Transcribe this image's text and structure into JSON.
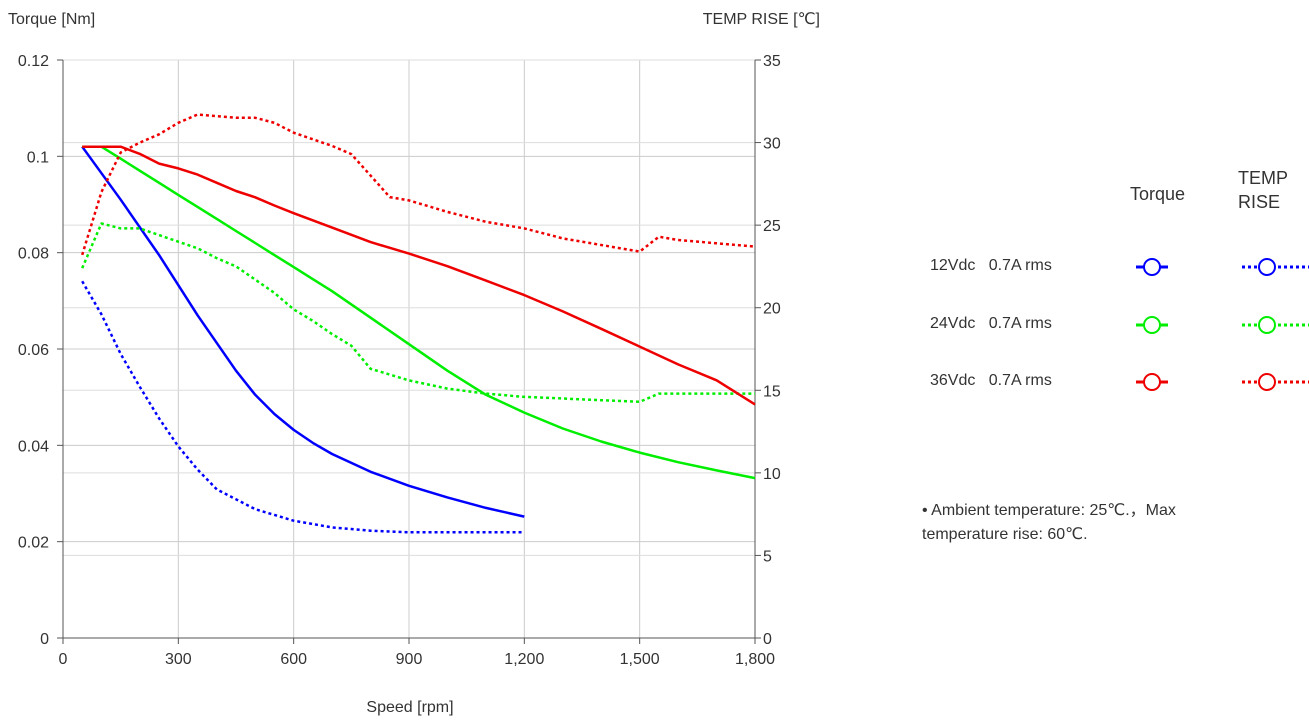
{
  "chart_data": {
    "type": "line",
    "xlabel": "Speed [rpm]",
    "ylabel_left": "Torque  [Nm]",
    "ylabel_right": "TEMP RISE [℃]",
    "xlim": [
      0,
      1800
    ],
    "ylim_left": [
      0,
      0.12
    ],
    "ylim_right": [
      0,
      35
    ],
    "x_ticks": [
      "0",
      "300",
      "600",
      "900",
      "1,200",
      "1,500",
      "1,800"
    ],
    "y_left_ticks": [
      "0",
      "0.02",
      "0.04",
      "0.06",
      "0.08",
      "0.1",
      "0.12"
    ],
    "y_right_ticks": [
      "0",
      "5",
      "10",
      "15",
      "20",
      "25",
      "30",
      "35"
    ],
    "grid": true,
    "legend_placement": "right",
    "series": [
      {
        "name": "12Vdc  0.7A rms",
        "kind": "Torque",
        "axis": "left",
        "color": "#0000ff",
        "dash": false,
        "x": [
          50,
          150,
          250,
          350,
          450,
          500,
          550,
          600,
          650,
          700,
          800,
          900,
          1000,
          1100,
          1200
        ],
        "y": [
          0.102,
          0.091,
          0.0795,
          0.067,
          0.0555,
          0.0505,
          0.0465,
          0.0432,
          0.0405,
          0.0382,
          0.0345,
          0.0316,
          0.0292,
          0.027,
          0.0252
        ]
      },
      {
        "name": "12Vdc  0.7A rms",
        "kind": "TEMP RISE",
        "axis": "right",
        "color": "#0000ff",
        "dash": true,
        "x": [
          50,
          100,
          150,
          200,
          250,
          300,
          350,
          400,
          450,
          500,
          600,
          700,
          750,
          800,
          900,
          1000,
          1100,
          1200
        ],
        "y": [
          21.6,
          19.6,
          17.2,
          15.2,
          13.3,
          11.6,
          10.2,
          9.0,
          8.4,
          7.8,
          7.1,
          6.7,
          6.6,
          6.5,
          6.4,
          6.4,
          6.4,
          6.4
        ]
      },
      {
        "name": "24Vdc  0.7A rms",
        "kind": "Torque",
        "axis": "left",
        "color": "#00ee00",
        "dash": false,
        "x": [
          50,
          100,
          150,
          200,
          250,
          300,
          350,
          400,
          450,
          500,
          550,
          600,
          650,
          700,
          800,
          900,
          1000,
          1100,
          1200,
          1300,
          1400,
          1500,
          1600,
          1700,
          1800
        ],
        "y": [
          0.102,
          0.102,
          0.0995,
          0.097,
          0.0945,
          0.092,
          0.0895,
          0.087,
          0.0845,
          0.082,
          0.0795,
          0.077,
          0.0745,
          0.072,
          0.0665,
          0.061,
          0.0555,
          0.0505,
          0.0468,
          0.0435,
          0.0408,
          0.0385,
          0.0365,
          0.0348,
          0.0332
        ]
      },
      {
        "name": "24Vdc  0.7A rms",
        "kind": "TEMP RISE",
        "axis": "right",
        "color": "#00ee00",
        "dash": true,
        "x": [
          50,
          100,
          150,
          200,
          250,
          300,
          350,
          400,
          450,
          500,
          550,
          600,
          650,
          700,
          750,
          800,
          900,
          1000,
          1100,
          1200,
          1300,
          1400,
          1500,
          1550,
          1600,
          1700,
          1800
        ],
        "y": [
          22.4,
          25.1,
          24.8,
          24.8,
          24.4,
          24.0,
          23.6,
          23.0,
          22.5,
          21.7,
          20.9,
          19.9,
          19.2,
          18.4,
          17.7,
          16.3,
          15.6,
          15.1,
          14.8,
          14.6,
          14.5,
          14.4,
          14.3,
          14.8,
          14.8,
          14.8,
          14.8
        ]
      },
      {
        "name": "36Vdc  0.7A rms",
        "kind": "Torque",
        "axis": "left",
        "color": "#ee0000",
        "dash": false,
        "x": [
          50,
          100,
          150,
          200,
          250,
          300,
          350,
          400,
          450,
          500,
          550,
          600,
          700,
          800,
          900,
          1000,
          1100,
          1200,
          1300,
          1400,
          1500,
          1600,
          1700,
          1800
        ],
        "y": [
          0.102,
          0.102,
          0.102,
          0.1005,
          0.0985,
          0.0975,
          0.0962,
          0.0945,
          0.0928,
          0.0915,
          0.0898,
          0.0882,
          0.0852,
          0.0822,
          0.0798,
          0.0772,
          0.0742,
          0.0712,
          0.0678,
          0.0642,
          0.0605,
          0.0568,
          0.0535,
          0.0485
        ]
      },
      {
        "name": "36Vdc  0.7A rms",
        "kind": "TEMP RISE",
        "axis": "right",
        "color": "#ee0000",
        "dash": true,
        "x": [
          50,
          100,
          150,
          200,
          250,
          300,
          350,
          400,
          450,
          500,
          550,
          600,
          700,
          750,
          800,
          850,
          900,
          1000,
          1100,
          1200,
          1300,
          1400,
          1500,
          1550,
          1600,
          1700,
          1800
        ],
        "y": [
          23.2,
          27.0,
          29.4,
          30.0,
          30.5,
          31.2,
          31.7,
          31.6,
          31.5,
          31.5,
          31.2,
          30.6,
          29.8,
          29.3,
          28.0,
          26.7,
          26.5,
          25.8,
          25.2,
          24.8,
          24.2,
          23.8,
          23.4,
          24.3,
          24.1,
          23.9,
          23.7
        ]
      }
    ]
  },
  "legend": {
    "col_torque": "Torque",
    "col_temp": "TEMP\nRISE",
    "rows": [
      "12Vdc   0.7A rms",
      "24Vdc   0.7A rms",
      "36Vdc   0.7A rms"
    ]
  },
  "note": "•  Ambient temperature: 25℃.，Max temperature rise: 60℃."
}
